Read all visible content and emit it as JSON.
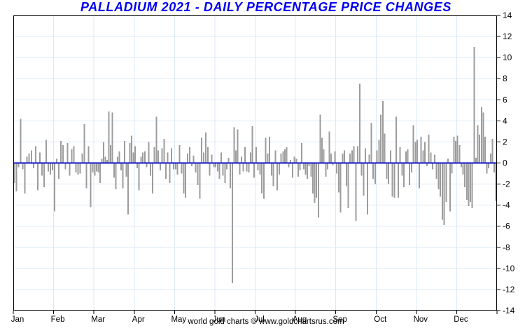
{
  "title": "PALLADIUM 2021 - DAILY PERCENTAGE PRICE CHANGES",
  "footer": "world gold charts © www.goldchartsrus.com",
  "colors": {
    "title": "#0000f0",
    "zero_line": "#1414cc",
    "bar": "#9c9c9c",
    "grid": "#dce9f5",
    "border": "#000000",
    "text": "#000000",
    "background": "#ffffff"
  },
  "y_axis": {
    "max": 14,
    "min": -14,
    "tick_step": 2,
    "tick_labels": [
      "14",
      "12",
      "10",
      "8",
      "6",
      "4",
      "2",
      "0",
      "-2",
      "-4",
      "-6",
      "-8",
      "-10",
      "-12",
      "-14"
    ]
  },
  "x_axis": {
    "month_labels": [
      "Jan",
      "Feb",
      "Mar",
      "Apr",
      "May",
      "Jun",
      "Jul",
      "Aug",
      "Sep",
      "Oct",
      "Nov",
      "Dec"
    ]
  },
  "chart_data": {
    "type": "bar",
    "title": "PALLADIUM 2021 - DAILY PERCENTAGE PRICE CHANGES",
    "xlabel": "",
    "ylabel": "",
    "unit": "percent",
    "ylim": [
      -14,
      14
    ],
    "y_tick_step": 2,
    "grid": true,
    "legend": "none",
    "categories": [
      "Jan",
      "Feb",
      "Mar",
      "Apr",
      "May",
      "Jun",
      "Jul",
      "Aug",
      "Sep",
      "Oct",
      "Nov",
      "Dec"
    ],
    "series": [
      {
        "month": "Jan",
        "values": [
          -1.9,
          -2.7,
          -0.4,
          4.2,
          -0.6,
          -2.9,
          0.6,
          0.9,
          1.2,
          -0.5,
          1.6,
          -2.6,
          1.0,
          -1.2,
          -2.3,
          2.2,
          -0.8,
          -1.1,
          -0.7
        ]
      },
      {
        "month": "Feb",
        "values": [
          -4.6,
          0.4,
          -1.5,
          2.1,
          1.7,
          -0.6,
          1.9,
          -1.2,
          1.3,
          1.6,
          -0.9,
          -1.1,
          -1.0,
          0.9,
          3.7,
          -2.4,
          1.6,
          -4.2,
          -0.9
        ]
      },
      {
        "month": "Mar",
        "values": [
          -1.2,
          -0.8,
          -0.9,
          -1.9,
          0.4,
          2.0,
          0.6,
          0.3,
          4.9,
          1.7,
          4.8,
          -1.4,
          -2.5,
          0.6,
          1.1,
          -0.7,
          -2.4,
          2.1,
          -1.3,
          -4.9,
          1.9,
          2.6,
          1.0
        ]
      },
      {
        "month": "Apr",
        "values": [
          1.6,
          -0.5,
          -2.6,
          0.6,
          1.0,
          1.1,
          -0.4,
          2.0,
          -1.2,
          -2.9,
          1.5,
          4.4,
          1.2,
          -0.7,
          1.4,
          2.3,
          -1.5,
          1.0,
          -1.9,
          1.4,
          -0.6
        ]
      },
      {
        "month": "May",
        "values": [
          -0.6,
          -1.1,
          1.7,
          -1.0,
          -2.9,
          -3.3,
          0.9,
          1.5,
          -0.3,
          0.7,
          -0.9,
          -2.1,
          -3.4,
          2.4,
          1.0,
          2.9,
          1.5,
          -1.2,
          0.8,
          -0.4
        ]
      },
      {
        "month": "Jun",
        "values": [
          -0.4,
          -0.8,
          -1.5,
          1.0,
          -1.2,
          -1.9,
          -0.6,
          0.5,
          -2.4,
          -11.4,
          3.4,
          1.2,
          3.2,
          -1.1,
          0.6,
          -0.8,
          1.5,
          -0.8,
          -0.9,
          1.0,
          3.5,
          -1.4
        ]
      },
      {
        "month": "Jul",
        "values": [
          1.5,
          -0.7,
          -1.1,
          -2.9,
          -3.4,
          2.4,
          0.9,
          2.5,
          -1.2,
          -2.2,
          1.2,
          -2.6,
          -1.1,
          0.9,
          1.1,
          1.3,
          1.5,
          -0.4,
          0.3,
          -1.4,
          0.6
        ]
      },
      {
        "month": "Aug",
        "values": [
          0.4,
          -1.3,
          -0.7,
          1.9,
          -0.6,
          -1.1,
          -1.5,
          -0.3,
          -1.3,
          -2.9,
          -3.8,
          -3.3,
          -5.2,
          4.6,
          2.4,
          1.3,
          -1.3,
          -0.6,
          3.0,
          0.9,
          -0.2,
          1.1
        ]
      },
      {
        "month": "Sep",
        "values": [
          -1.0,
          -2.8,
          -4.7,
          0.9,
          1.2,
          -2.2,
          -4.3,
          0.9,
          1.2,
          1.6,
          -5.5,
          1.6,
          7.5,
          -1.2,
          -3.1,
          1.4,
          -4.9,
          0.8,
          3.8,
          -1.5,
          -2.0
        ]
      },
      {
        "month": "Oct",
        "values": [
          1.2,
          2.2,
          4.6,
          5.9,
          2.8,
          -1.5,
          -2.0,
          1.2,
          -3.2,
          -3.3,
          4.4,
          -3.3,
          1.5,
          -1.2,
          -2.3,
          1.1,
          1.3,
          -2.1,
          -0.9,
          3.6,
          2.0
        ]
      },
      {
        "month": "Nov",
        "values": [
          2.2,
          -2.4,
          2.5,
          1.2,
          2.0,
          -0.3,
          2.7,
          1.0,
          -0.6,
          0.8,
          -1.5,
          -2.5,
          -3.2,
          -5.4,
          -5.9,
          -3.7,
          0.4,
          -4.6,
          -1.0,
          2.5,
          2.1
        ]
      },
      {
        "month": "Dec",
        "values": [
          2.6,
          1.7,
          -0.4,
          -1.1,
          -2.3,
          -3.5,
          -4.1,
          -3.7,
          -4.3,
          11.0,
          0.5,
          3.6,
          2.7,
          5.3,
          4.8,
          2.5,
          -1.0,
          -0.5,
          0.9,
          2.3,
          -0.9,
          -3.6
        ]
      }
    ]
  }
}
